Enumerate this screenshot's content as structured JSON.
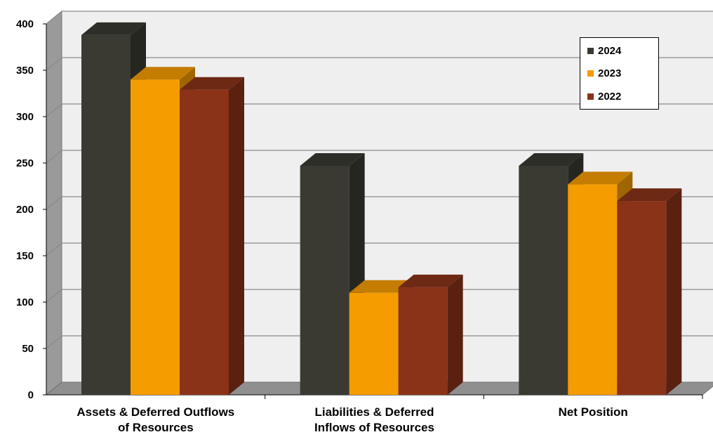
{
  "chart_data": {
    "type": "bar",
    "categories": [
      "Assets & Deferred Outflows of Resources",
      "Liabilities & Deferred Inflows of Resources",
      "Net Position"
    ],
    "category_lines": [
      [
        "Assets & Deferred Outflows",
        "of Resources"
      ],
      [
        "Liabilities & Deferred",
        "Inflows of Resources"
      ],
      [
        "Net Position"
      ]
    ],
    "series": [
      {
        "name": "2024",
        "values": [
          388,
          247,
          247
        ],
        "color": "#3a3a33"
      },
      {
        "name": "2023",
        "values": [
          340,
          110,
          227
        ],
        "color": "#f59c00"
      },
      {
        "name": "2022",
        "values": [
          329,
          116,
          209
        ],
        "color": "#8a3319"
      }
    ],
    "ylim": [
      0,
      400
    ],
    "yticks": [
      "0",
      "50",
      "100",
      "150",
      "200",
      "250",
      "300",
      "350",
      "400"
    ],
    "grid": true,
    "legend_position": "top-right",
    "three_d": true
  }
}
